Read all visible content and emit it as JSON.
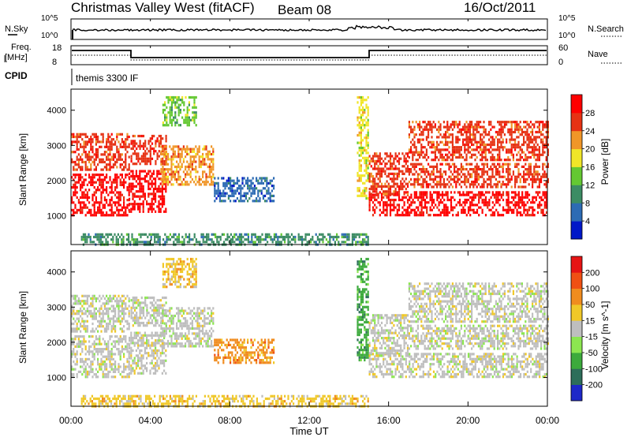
{
  "header": {
    "title": "Christmas Valley West (fitACF)",
    "beam": "Beam 08",
    "date": "16/Oct/2011"
  },
  "noise_panel": {
    "left_label": "N.Sky",
    "right_label": "N.Search",
    "left_ticks": [
      "10^5",
      "10^0"
    ],
    "right_ticks": [
      "10^5",
      "10^0"
    ]
  },
  "freq_panel": {
    "left_label_line1": "Freq.",
    "left_label_line2": "[MHz]",
    "right_label": "Nave",
    "left_ticks": [
      "18",
      "8"
    ],
    "right_ticks": [
      "60",
      "0"
    ]
  },
  "cpid": {
    "label": "CPID",
    "value": "themis 3300 IF"
  },
  "time_axis": {
    "label": "Time UT",
    "ticks": [
      "00:00",
      "04:00",
      "08:00",
      "12:00",
      "16:00",
      "20:00",
      "00:00"
    ]
  },
  "chart_data": [
    {
      "type": "heatmap",
      "panel": "power",
      "ylabel": "Slant Range [km]",
      "yticks": [
        "1000",
        "2000",
        "3000",
        "4000"
      ],
      "xlim_hours": [
        0,
        24
      ],
      "ylim_km": [
        180,
        4600
      ],
      "colorbar": {
        "label": "Power [dB]",
        "ticks": [
          "4",
          "8",
          "12",
          "16",
          "20",
          "24",
          "28"
        ],
        "colors": [
          "#0018c8",
          "#2d6bb4",
          "#3c8c64",
          "#64c832",
          "#f0e628",
          "#f09628",
          "#e63214",
          "#ff0000"
        ]
      },
      "regions": [
        {
          "t": [
            0.0,
            2.9
          ],
          "r": [
            1000,
            2200
          ],
          "level": 7
        },
        {
          "t": [
            0.0,
            2.9
          ],
          "r": [
            2300,
            3350
          ],
          "level": 6
        },
        {
          "t": [
            2.9,
            4.8
          ],
          "r": [
            1100,
            2300
          ],
          "level": 7
        },
        {
          "t": [
            3.0,
            4.8
          ],
          "r": [
            2500,
            3300
          ],
          "level": 6
        },
        {
          "t": [
            4.5,
            7.2
          ],
          "r": [
            1900,
            3000
          ],
          "level": 5
        },
        {
          "t": [
            4.6,
            6.3
          ],
          "r": [
            3600,
            4400
          ],
          "level": 3
        },
        {
          "t": [
            7.2,
            10.2
          ],
          "r": [
            1400,
            2100
          ],
          "level": 1
        },
        {
          "t": [
            0.5,
            15.0
          ],
          "r": [
            200,
            500
          ],
          "level": 2
        },
        {
          "t": [
            14.4,
            15.0
          ],
          "r": [
            1500,
            4400
          ],
          "level": 4
        },
        {
          "t": [
            15.0,
            24.0
          ],
          "r": [
            1000,
            1700
          ],
          "level": 7
        },
        {
          "t": [
            15.0,
            17.0
          ],
          "r": [
            1600,
            2800
          ],
          "level": 6
        },
        {
          "t": [
            17.0,
            24.0
          ],
          "r": [
            2600,
            3700
          ],
          "level": 6
        },
        {
          "t": [
            17.0,
            24.0
          ],
          "r": [
            1800,
            2500
          ],
          "level": 6
        }
      ]
    },
    {
      "type": "heatmap",
      "panel": "velocity",
      "ylabel": "Slant Range [km]",
      "yticks": [
        "1000",
        "2000",
        "3000",
        "4000"
      ],
      "xlim_hours": [
        0,
        24
      ],
      "ylim_km": [
        180,
        4600
      ],
      "colorbar": {
        "label": "Velocity [m s^-1]",
        "ticks": [
          "200",
          "100",
          "50",
          "15",
          "-15",
          "-50",
          "-100",
          "-200"
        ],
        "colors": [
          "#1e28c8",
          "#2d6e5a",
          "#3caa3c",
          "#8ce650",
          "#bebebe",
          "#f0c828",
          "#f08c1e",
          "#f05014",
          "#e61414"
        ]
      },
      "regions": [
        {
          "t": [
            0.0,
            2.9
          ],
          "r": [
            1000,
            2200
          ],
          "level": 4
        },
        {
          "t": [
            0.0,
            2.9
          ],
          "r": [
            2300,
            3350
          ],
          "level": 4
        },
        {
          "t": [
            2.9,
            4.8
          ],
          "r": [
            1100,
            2300
          ],
          "level": 4
        },
        {
          "t": [
            3.0,
            4.8
          ],
          "r": [
            2500,
            3300
          ],
          "level": 4
        },
        {
          "t": [
            4.5,
            7.2
          ],
          "r": [
            1900,
            3000
          ],
          "level": 4
        },
        {
          "t": [
            4.6,
            6.3
          ],
          "r": [
            3600,
            4400
          ],
          "level": 5
        },
        {
          "t": [
            7.2,
            10.2
          ],
          "r": [
            1400,
            2100
          ],
          "level": 6
        },
        {
          "t": [
            0.5,
            15.0
          ],
          "r": [
            200,
            500
          ],
          "level": 5
        },
        {
          "t": [
            14.4,
            15.0
          ],
          "r": [
            1500,
            4400
          ],
          "level": 2
        },
        {
          "t": [
            15.0,
            24.0
          ],
          "r": [
            1000,
            1700
          ],
          "level": 4
        },
        {
          "t": [
            15.0,
            17.0
          ],
          "r": [
            1600,
            2800
          ],
          "level": 4
        },
        {
          "t": [
            17.0,
            24.0
          ],
          "r": [
            2600,
            3700
          ],
          "level": 4
        },
        {
          "t": [
            17.0,
            24.0
          ],
          "r": [
            1800,
            2500
          ],
          "level": 4
        }
      ]
    }
  ]
}
